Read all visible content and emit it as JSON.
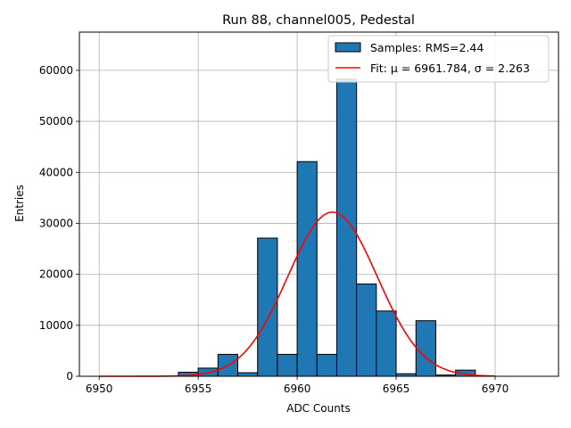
{
  "chart_data": {
    "type": "bar",
    "title": "Run 88, channel005, Pedestal",
    "xlabel": "ADC Counts",
    "ylabel": "Entries",
    "xlim": [
      6949,
      6973.2
    ],
    "ylim": [
      0,
      67500
    ],
    "grid": true,
    "legend_position": "top-right",
    "xticks": [
      "6950",
      "6955",
      "6960",
      "6965",
      "6970"
    ],
    "yticks": [
      "0",
      "10000",
      "20000",
      "30000",
      "40000",
      "50000",
      "60000"
    ],
    "histogram": {
      "name": "Samples: RMS=2.44",
      "bin_width": 1,
      "bins": [
        {
          "x": 6954,
          "count": 800
        },
        {
          "x": 6955,
          "count": 1600
        },
        {
          "x": 6956,
          "count": 4300
        },
        {
          "x": 6957,
          "count": 700
        },
        {
          "x": 6958,
          "count": 27100
        },
        {
          "x": 6959,
          "count": 4300
        },
        {
          "x": 6960,
          "count": 42100
        },
        {
          "x": 6961,
          "count": 4300
        },
        {
          "x": 6962,
          "count": 58300
        },
        {
          "x": 6963,
          "count": 18100
        },
        {
          "x": 6964,
          "count": 12800
        },
        {
          "x": 6965,
          "count": 500
        },
        {
          "x": 6966,
          "count": 10900
        },
        {
          "x": 6967,
          "count": 250
        },
        {
          "x": 6968,
          "count": 1200
        }
      ]
    },
    "fit": {
      "name": "Fit: μ = 6961.784, σ = 2.263",
      "mu": 6961.784,
      "sigma": 2.263,
      "amplitude": 32200,
      "x_range": [
        6950,
        6970
      ]
    },
    "colors": {
      "bar_fill": "#1f77b4",
      "bar_edge": "#000000",
      "fit_line": "#ff0000",
      "grid": "#b0b0b0"
    }
  }
}
